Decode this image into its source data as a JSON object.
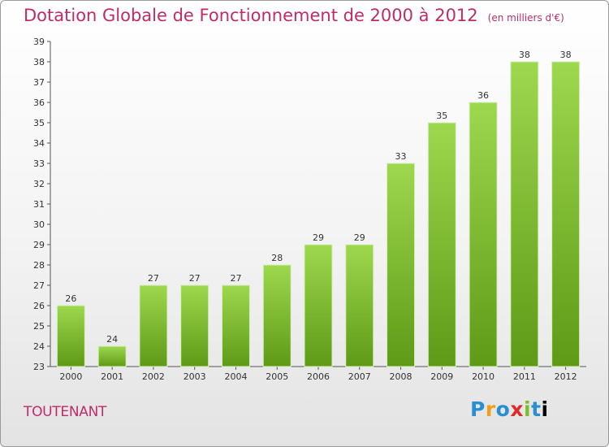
{
  "title": "Dotation Globale de Fonctionnement de 2000 à 2012",
  "unit": "(en milliers d'€)",
  "commune": "TOUTENANT",
  "logo": [
    "P",
    "r",
    "o",
    "x",
    "i",
    "t",
    "i"
  ],
  "colors": {
    "title": "#c02b68",
    "bar_top": "#9ed84e",
    "bar_bottom": "#5e9a16"
  },
  "chart_data": {
    "type": "bar",
    "categories": [
      "2000",
      "2001",
      "2002",
      "2003",
      "2004",
      "2005",
      "2006",
      "2007",
      "2008",
      "2009",
      "2010",
      "2011",
      "2012"
    ],
    "values": [
      26,
      24,
      27,
      27,
      27,
      28,
      29,
      29,
      33,
      35,
      36,
      38,
      38
    ],
    "title": "Dotation Globale de Fonctionnement de 2000 à 2012",
    "xlabel": "",
    "ylabel": "",
    "ylim": [
      23,
      39
    ],
    "yticks": [
      23,
      24,
      25,
      26,
      27,
      28,
      29,
      30,
      31,
      32,
      33,
      34,
      35,
      36,
      37,
      38,
      39
    ],
    "grid": false
  }
}
